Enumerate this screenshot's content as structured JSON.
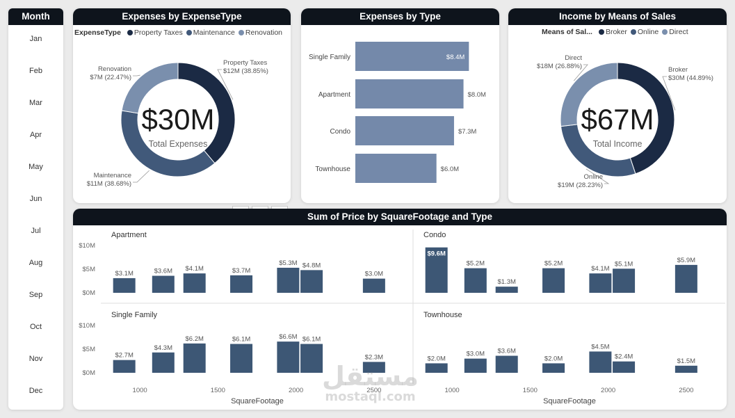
{
  "month_slicer": {
    "title": "Month",
    "items": [
      "Jan",
      "Feb",
      "Mar",
      "Apr",
      "May",
      "Jun",
      "Jul",
      "Aug",
      "Sep",
      "Oct",
      "Nov",
      "Dec"
    ]
  },
  "expenses_by_expensetype": {
    "title": "Expenses by ExpenseType",
    "legend_title": "ExpenseType",
    "center_value": "$30M",
    "center_label": "Total Expenses"
  },
  "expenses_by_type": {
    "title": "Expenses by Type"
  },
  "income_by_means": {
    "title": "Income by Means of Sales",
    "legend_title": "Means of Sal...",
    "center_value": "$67M",
    "center_label": "Total Income"
  },
  "sum_of_price": {
    "title": "Sum of Price by SquareFootage and Type"
  },
  "watermark": {
    "arabic": "مستقل",
    "latin": "mostaql.com"
  },
  "chart_data": [
    {
      "type": "pie",
      "title": "Expenses by ExpenseType",
      "legend_title": "ExpenseType",
      "legend_position": "top-left",
      "categories": [
        "Property Taxes",
        "Maintenance",
        "Renovation"
      ],
      "values": [
        12,
        11,
        7
      ],
      "value_labels": [
        "$12M (38.85%)",
        "$11M (38.68%)",
        "$7M (22.47%)"
      ],
      "percentages": [
        38.85,
        38.68,
        22.47
      ],
      "colors": [
        "#1b2a44",
        "#41597a",
        "#7a8fad"
      ]
    },
    {
      "type": "bar",
      "orientation": "horizontal",
      "title": "Expenses by Type",
      "categories": [
        "Single Family",
        "Apartment",
        "Condo",
        "Townhouse"
      ],
      "values": [
        8.4,
        8.0,
        7.3,
        6.0
      ],
      "value_labels": [
        "$8.4M",
        "$8.0M",
        "$7.3M",
        "$6.0M"
      ],
      "xlim": [
        0,
        9
      ],
      "color": "#7489aa"
    },
    {
      "type": "pie",
      "title": "Income by Means of Sales",
      "legend_title": "Means of Sal...",
      "legend_position": "top-left",
      "categories": [
        "Broker",
        "Online",
        "Direct"
      ],
      "values": [
        30,
        19,
        18
      ],
      "value_labels": [
        "$30M (44.89%)",
        "$19M (28.23%)",
        "$18M (26.88%)"
      ],
      "percentages": [
        44.89,
        28.23,
        26.88
      ],
      "colors": [
        "#1b2a44",
        "#41597a",
        "#7a8fad"
      ]
    },
    {
      "type": "bar",
      "title": "Sum of Price by SquareFootage and Type",
      "xlabel": "SquareFootage",
      "x_ticks": [
        1000,
        1500,
        2000,
        2500
      ],
      "y_ticks": [
        "$0M",
        "$5M",
        "$10M"
      ],
      "ylim": [
        0,
        10
      ],
      "x_range": [
        750,
        2750
      ],
      "color": "#3d5775",
      "panels": [
        {
          "name": "Apartment",
          "x": [
            900,
            1150,
            1350,
            1650,
            1950,
            2100,
            2500
          ],
          "values": [
            3.1,
            3.6,
            4.1,
            3.7,
            5.3,
            4.8,
            3.0
          ],
          "labels": [
            "$3.1M",
            "$3.6M",
            "$4.1M",
            "$3.7M",
            "$5.3M",
            "$4.8M",
            "$3.0M"
          ]
        },
        {
          "name": "Condo",
          "x": [
            900,
            1150,
            1350,
            1650,
            1950,
            2100,
            2500
          ],
          "values": [
            9.6,
            5.2,
            1.3,
            5.2,
            4.1,
            5.1,
            5.9
          ],
          "labels": [
            "$9.6M",
            "$5.2M",
            "$1.3M",
            "$5.2M",
            "$4.1M",
            "$5.1M",
            "$5.9M"
          ]
        },
        {
          "name": "Single Family",
          "x": [
            900,
            1150,
            1350,
            1650,
            1950,
            2100,
            2500
          ],
          "values": [
            2.7,
            4.3,
            6.2,
            6.1,
            6.6,
            6.1,
            2.3
          ],
          "labels": [
            "$2.7M",
            "$4.3M",
            "$6.2M",
            "$6.1M",
            "$6.6M",
            "$6.1M",
            "$2.3M"
          ]
        },
        {
          "name": "Townhouse",
          "x": [
            900,
            1150,
            1350,
            1650,
            1950,
            2100,
            2500
          ],
          "values": [
            2.0,
            3.0,
            3.6,
            2.0,
            4.5,
            2.4,
            1.5
          ],
          "labels": [
            "$2.0M",
            "$3.0M",
            "$3.6M",
            "$2.0M",
            "$4.5M",
            "$2.4M",
            "$1.5M"
          ]
        }
      ]
    }
  ]
}
